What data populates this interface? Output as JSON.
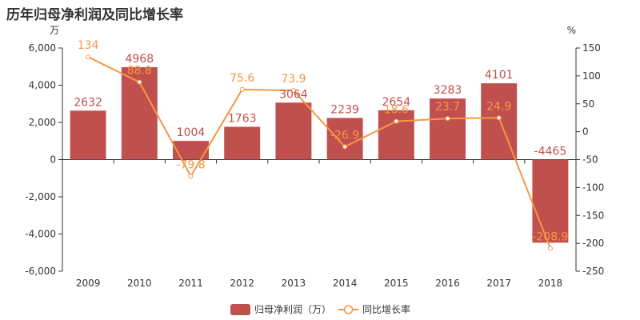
{
  "title": "历年归母净利润及同比增长率",
  "chart_data": {
    "type": "bar",
    "categories": [
      "2009",
      "2010",
      "2011",
      "2012",
      "2013",
      "2014",
      "2015",
      "2016",
      "2017",
      "2018"
    ],
    "series": [
      {
        "name": "归母净利润（万）",
        "type": "bar",
        "axis": "left",
        "values": [
          2632,
          4968,
          1004,
          1763,
          3064,
          2239,
          2654,
          3283,
          4101,
          -4465
        ],
        "labels": [
          "2632",
          "4968",
          "1004",
          "1763",
          "3064",
          "2239",
          "2654",
          "3283",
          "4101",
          "-4465"
        ]
      },
      {
        "name": "同比增长率",
        "type": "line",
        "axis": "right",
        "values": [
          134,
          88.8,
          -79.8,
          75.6,
          73.9,
          -26.9,
          18.6,
          23.7,
          24.9,
          -208.9
        ],
        "labels": [
          "134",
          "88.8",
          "-79.8",
          "75.6",
          "73.9",
          "-26.9",
          "18.6",
          "23.7",
          "24.9",
          "-208.9"
        ]
      }
    ],
    "y_left": {
      "unit": "万",
      "ylim": [
        -6000,
        6000
      ],
      "ticks": [
        6000,
        4000,
        2000,
        0,
        -2000,
        -4000,
        -6000
      ],
      "tick_labels": [
        "6,000",
        "4,000",
        "2,000",
        "0",
        "-2,000",
        "-4,000",
        "-6,000"
      ]
    },
    "y_right": {
      "unit": "%",
      "ylim": [
        -250,
        150
      ],
      "ticks": [
        150,
        100,
        50,
        0,
        -50,
        -100,
        -150,
        -200,
        -250
      ],
      "tick_labels": [
        "150",
        "100",
        "50",
        "0",
        "-50",
        "-100",
        "-150",
        "-200",
        "-250"
      ]
    },
    "grid": false,
    "legend_position": "bottom-center",
    "colors": {
      "bar": "#c0504d",
      "bar_label": "#c0504d",
      "line": "#f79646",
      "line_label": "#f79646",
      "axis": "#333333"
    }
  }
}
